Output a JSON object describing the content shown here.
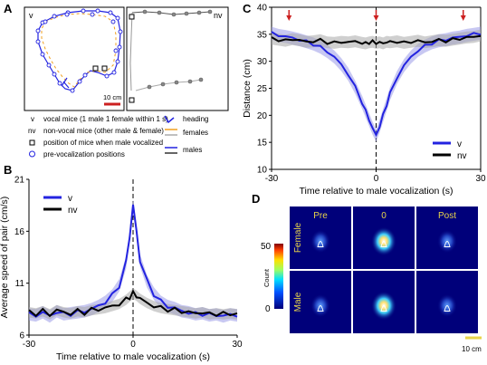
{
  "panels": {
    "a": {
      "letter": "A",
      "label_v": "v",
      "label_nv": "nv",
      "scale_bar": "10 cm",
      "legend": [
        {
          "symbol": "v",
          "text": "vocal mice (1 male 1 female within 1 s)"
        },
        {
          "symbol": "nv",
          "text": "non-vocal mice (other male & female)"
        },
        {
          "symbol": "square",
          "text": "position of mice when male vocalized"
        },
        {
          "symbol": "circle",
          "text": "pre-vocalization positions"
        }
      ],
      "legend_right": [
        {
          "symbol": "arrow",
          "text": "heading"
        },
        {
          "symbol": "lines-orange-grey",
          "text": "females"
        },
        {
          "symbol": "lines-blue-dark",
          "text": "males"
        }
      ]
    },
    "b": {
      "letter": "B",
      "legend": [
        "v",
        "nv"
      ]
    },
    "c": {
      "letter": "C",
      "legend": [
        "v",
        "nv"
      ]
    },
    "d": {
      "letter": "D",
      "col_labels": [
        "Pre",
        "0",
        "Post"
      ],
      "row_labels": [
        "Female",
        "Male"
      ],
      "colorbar_max": "50",
      "colorbar_min": "0",
      "colorbar_label": "Count",
      "scale_bar": "10 cm"
    }
  },
  "colors": {
    "v": "#2323e0",
    "v_band": "#9a9ae8",
    "nv": "#000000",
    "nv_band": "#a8a8a8",
    "arrow_red": "#cc2020",
    "female_orange": "#f0a020",
    "heatmap_bg": "#00007a"
  },
  "chart_data": [
    {
      "id": "B",
      "type": "line",
      "xlabel": "Time relative to male vocalization (s)",
      "ylabel": "Average speed of pair (cm/s)",
      "xlim": [
        -30,
        30
      ],
      "ylim": [
        6,
        21
      ],
      "xticks": [
        -30,
        0,
        30
      ],
      "yticks": [
        6,
        11,
        16,
        21
      ],
      "vline_x": 0,
      "legend_position": "top-left",
      "x": [
        -30,
        -28,
        -26,
        -24,
        -22,
        -20,
        -18,
        -16,
        -14,
        -12,
        -10,
        -8,
        -6,
        -4,
        -2,
        -1,
        0,
        1,
        2,
        4,
        6,
        8,
        10,
        12,
        14,
        16,
        18,
        20,
        22,
        24,
        26,
        28,
        30
      ],
      "series": [
        {
          "name": "v",
          "color": "#2323e0",
          "band": 0.6,
          "values": [
            8.0,
            7.9,
            8.2,
            7.8,
            8.3,
            8.0,
            8.1,
            8.2,
            8.3,
            8.5,
            8.8,
            9.2,
            9.8,
            10.8,
            13.0,
            15.5,
            18.5,
            16.0,
            13.2,
            11.2,
            10.0,
            9.2,
            8.8,
            8.6,
            8.3,
            8.2,
            8.0,
            8.1,
            7.9,
            8.0,
            7.8,
            8.0,
            7.9
          ]
        },
        {
          "name": "nv",
          "color": "#000000",
          "band": 0.5,
          "values": [
            8.2,
            8.1,
            8.3,
            8.0,
            8.4,
            8.2,
            8.1,
            8.3,
            8.2,
            8.4,
            8.5,
            8.6,
            8.8,
            9.0,
            9.4,
            9.7,
            10.0,
            9.8,
            9.5,
            9.1,
            8.8,
            8.6,
            8.5,
            8.4,
            8.3,
            8.2,
            8.1,
            8.2,
            8.0,
            8.1,
            8.0,
            8.1,
            8.0
          ]
        }
      ]
    },
    {
      "id": "C",
      "type": "line",
      "xlabel": "Time relative to male vocalization (s)",
      "ylabel": "Distance (cm)",
      "xlim": [
        -30,
        30
      ],
      "ylim": [
        10,
        40
      ],
      "xticks": [
        -30,
        0,
        30
      ],
      "yticks": [
        10,
        15,
        20,
        25,
        30,
        35,
        40
      ],
      "vline_x": 0,
      "arrows_x": [
        -25,
        0,
        25
      ],
      "legend_position": "bottom-right",
      "x": [
        -30,
        -28,
        -26,
        -24,
        -22,
        -20,
        -18,
        -16,
        -14,
        -12,
        -10,
        -8,
        -6,
        -4,
        -3,
        -2,
        -1,
        0,
        1,
        2,
        3,
        4,
        6,
        8,
        10,
        12,
        14,
        16,
        18,
        20,
        22,
        24,
        26,
        28,
        30
      ],
      "series": [
        {
          "name": "v",
          "color": "#2323e0",
          "band": 1.2,
          "values": [
            35.2,
            34.8,
            34.6,
            34.3,
            34.0,
            33.6,
            33.2,
            32.6,
            31.8,
            30.8,
            29.4,
            27.6,
            25.2,
            22.4,
            20.8,
            19.2,
            17.6,
            16.3,
            18.0,
            20.0,
            22.0,
            24.0,
            27.0,
            29.2,
            30.8,
            32.0,
            32.8,
            33.4,
            33.8,
            34.0,
            34.3,
            34.5,
            34.8,
            35.0,
            35.2
          ]
        },
        {
          "name": "nv",
          "color": "#000000",
          "band": 1.1,
          "values": [
            34.2,
            34.0,
            33.8,
            34.1,
            33.9,
            33.6,
            33.7,
            33.9,
            33.5,
            33.4,
            33.6,
            33.5,
            33.7,
            33.4,
            33.3,
            33.5,
            33.6,
            33.4,
            33.5,
            33.3,
            33.6,
            33.5,
            33.7,
            33.4,
            33.6,
            33.8,
            33.5,
            33.7,
            33.9,
            33.8,
            34.0,
            34.2,
            34.4,
            34.5,
            34.8
          ]
        }
      ]
    }
  ]
}
